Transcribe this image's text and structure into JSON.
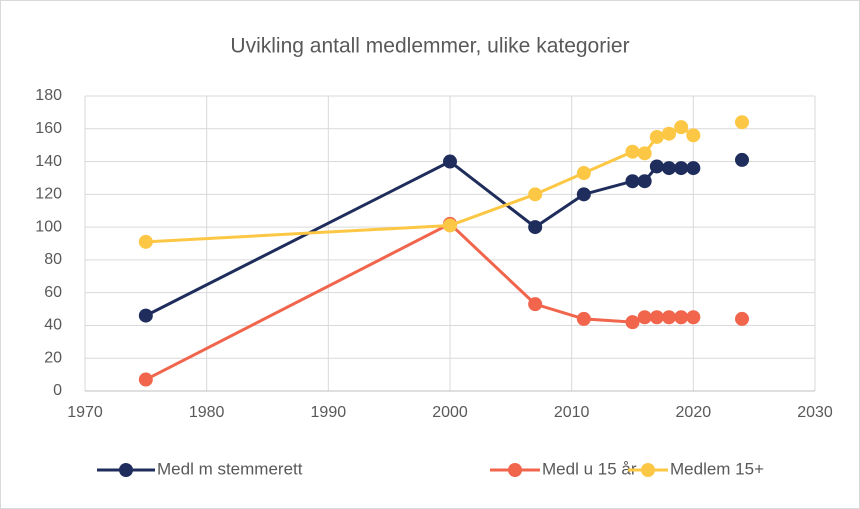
{
  "chart_data": {
    "type": "line",
    "title": "Uvikling antall medlemmer, ulike kategorier",
    "x": [
      1975,
      2000,
      2007,
      2011,
      2015,
      2016,
      2017,
      2018,
      2019,
      2020,
      null,
      2024
    ],
    "series": [
      {
        "name": "Medl m stemmerett",
        "color": "#1f2d5c",
        "values": [
          46,
          140,
          100,
          120,
          128,
          128,
          137,
          136,
          136,
          136,
          null,
          141
        ]
      },
      {
        "name": "Medl u 15 år",
        "color": "#f0654c",
        "values": [
          7,
          102,
          53,
          44,
          42,
          45,
          45,
          45,
          45,
          45,
          null,
          44
        ]
      },
      {
        "name": "Medlem 15+",
        "color": "#fcc744",
        "values": [
          91,
          101,
          120,
          133,
          146,
          145,
          155,
          157,
          161,
          156,
          null,
          164
        ]
      }
    ],
    "xlim": [
      1970,
      2030
    ],
    "xticks": [
      1970,
      1980,
      1990,
      2000,
      2010,
      2020,
      2030
    ],
    "ylim": [
      0,
      180
    ],
    "yticks": [
      0,
      20,
      40,
      60,
      80,
      100,
      120,
      140,
      160,
      180
    ],
    "grid": true,
    "legend": "bottom"
  }
}
